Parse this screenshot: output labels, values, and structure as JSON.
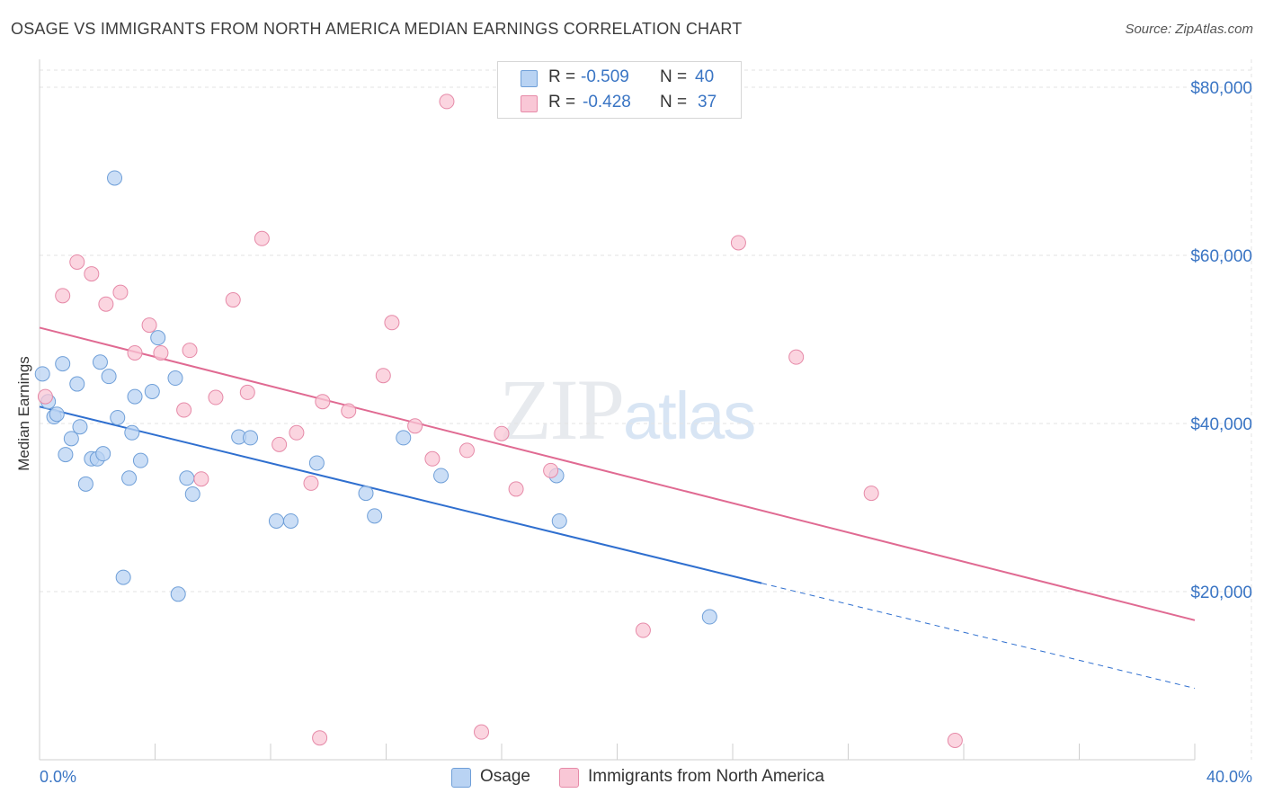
{
  "header": {
    "title": "OSAGE VS IMMIGRANTS FROM NORTH AMERICA MEDIAN EARNINGS CORRELATION CHART",
    "source": "Source: ZipAtlas.com"
  },
  "watermark": {
    "zip": "ZIP",
    "atlas": "atlas"
  },
  "legend": {
    "rows": [
      {
        "r_label": "R = ",
        "r_value": "-0.509",
        "n_label": "N = ",
        "n_value": "40",
        "color": "#b9d3f3",
        "border": "#6f9fd8"
      },
      {
        "r_label": "R = ",
        "r_value": "-0.428",
        "n_label": "N = ",
        "n_value": "37",
        "color": "#f9c7d6",
        "border": "#e68aa8"
      }
    ]
  },
  "bottom_legend": {
    "series1": "Osage",
    "series2": "Immigrants from North America"
  },
  "colors": {
    "osage_fill": "#b9d3f3",
    "osage_stroke": "#6f9fd8",
    "osage_line": "#2f6fcf",
    "immig_fill": "#f9c7d6",
    "immig_stroke": "#e68aa8",
    "immig_line": "#e06a92",
    "grid": "#e3e3e3",
    "tick_text": "#3a75c4"
  },
  "chart_data": {
    "type": "scatter",
    "title": "OSAGE VS IMMIGRANTS FROM NORTH AMERICA MEDIAN EARNINGS CORRELATION CHART",
    "ylabel": "Median Earnings",
    "xlabel": "",
    "xlim": [
      0,
      40
    ],
    "ylim": [
      0,
      80000
    ],
    "x_tick_labels": [
      "0.0%",
      "40.0%"
    ],
    "y_tick_labels": [
      {
        "value": 20000,
        "label": "$20,000"
      },
      {
        "value": 40000,
        "label": "$40,000"
      },
      {
        "value": 60000,
        "label": "$60,000"
      },
      {
        "value": 80000,
        "label": "$80,000"
      }
    ],
    "grid": true,
    "legend_position": "top-center",
    "series": [
      {
        "name": "Osage",
        "points": [
          [
            0.1,
            45900
          ],
          [
            0.3,
            42600
          ],
          [
            0.5,
            40800
          ],
          [
            0.6,
            41100
          ],
          [
            0.8,
            47100
          ],
          [
            0.9,
            36300
          ],
          [
            1.1,
            38200
          ],
          [
            1.3,
            44700
          ],
          [
            1.4,
            39600
          ],
          [
            1.6,
            32800
          ],
          [
            1.8,
            35800
          ],
          [
            2.0,
            35800
          ],
          [
            2.1,
            47300
          ],
          [
            2.2,
            36400
          ],
          [
            2.4,
            45600
          ],
          [
            2.6,
            69200
          ],
          [
            2.7,
            40700
          ],
          [
            2.9,
            21700
          ],
          [
            3.1,
            33500
          ],
          [
            3.2,
            38900
          ],
          [
            3.3,
            43200
          ],
          [
            3.5,
            35600
          ],
          [
            3.9,
            43800
          ],
          [
            4.1,
            50200
          ],
          [
            4.7,
            45400
          ],
          [
            4.8,
            19700
          ],
          [
            5.1,
            33500
          ],
          [
            5.3,
            31600
          ],
          [
            6.9,
            38400
          ],
          [
            7.3,
            38300
          ],
          [
            8.2,
            28400
          ],
          [
            8.7,
            28400
          ],
          [
            9.6,
            35300
          ],
          [
            11.3,
            31700
          ],
          [
            11.6,
            29000
          ],
          [
            12.6,
            38300
          ],
          [
            13.9,
            33800
          ],
          [
            17.9,
            33800
          ],
          [
            18.0,
            28400
          ],
          [
            23.2,
            17000
          ]
        ]
      },
      {
        "name": "Immigrants from North America",
        "points": [
          [
            0.2,
            43200
          ],
          [
            0.8,
            55200
          ],
          [
            1.3,
            59200
          ],
          [
            1.8,
            57800
          ],
          [
            2.3,
            54200
          ],
          [
            2.8,
            55600
          ],
          [
            3.3,
            48400
          ],
          [
            3.8,
            51700
          ],
          [
            4.2,
            48400
          ],
          [
            5.2,
            48700
          ],
          [
            5.0,
            41600
          ],
          [
            5.6,
            33400
          ],
          [
            6.1,
            43100
          ],
          [
            6.7,
            54700
          ],
          [
            7.2,
            43700
          ],
          [
            7.7,
            62000
          ],
          [
            8.3,
            37500
          ],
          [
            8.9,
            38900
          ],
          [
            9.4,
            32900
          ],
          [
            9.8,
            42600
          ],
          [
            9.7,
            2600
          ],
          [
            10.7,
            41500
          ],
          [
            11.9,
            45700
          ],
          [
            12.2,
            52000
          ],
          [
            13.0,
            39700
          ],
          [
            13.6,
            35800
          ],
          [
            14.1,
            78300
          ],
          [
            14.8,
            36800
          ],
          [
            15.3,
            3300
          ],
          [
            16.0,
            38800
          ],
          [
            16.5,
            32200
          ],
          [
            17.7,
            34400
          ],
          [
            20.9,
            15400
          ],
          [
            24.2,
            61500
          ],
          [
            26.2,
            47900
          ],
          [
            28.8,
            31700
          ],
          [
            31.7,
            2300
          ]
        ]
      }
    ],
    "trend_lines": [
      {
        "series": "Osage",
        "x0": 0,
        "y0": 42000,
        "x1": 25.0,
        "y1": 21000,
        "x_dash_end": 40,
        "y_dash_end": 8500
      },
      {
        "series": "Immigrants from North America",
        "x0": 0,
        "y0": 51400,
        "x1": 40,
        "y1": 16600
      }
    ]
  }
}
